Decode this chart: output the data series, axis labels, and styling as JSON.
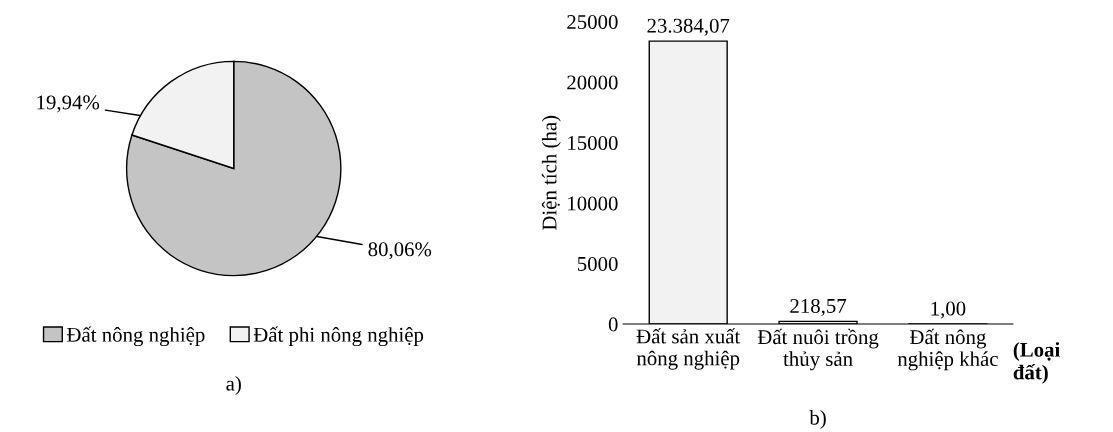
{
  "chart_data": [
    {
      "type": "pie",
      "title": "a)",
      "categories": [
        "Đất nông nghiệp",
        "Đất phi nông nghiệp"
      ],
      "values": [
        80.06,
        19.94
      ],
      "colors": [
        "#c4c4c4",
        "#f2f2f2"
      ],
      "value_labels": [
        "80,06%",
        "19,94%"
      ],
      "legend": "bottom"
    },
    {
      "type": "bar",
      "title": "b)",
      "categories": [
        "Đất sản xuất\nnông nghiệp",
        "Đất nuôi trồng\nthủy sản",
        "Đất nông\nnghiệp khác"
      ],
      "values": [
        23384.07,
        218.57,
        1.0
      ],
      "value_labels": [
        "23.384,07",
        "218,57",
        "1,00"
      ],
      "color": "#f2f2f2",
      "ylabel": "Diện tích (ha)",
      "xlabel": "(Loại\nđất)",
      "ylim": [
        0,
        25000
      ],
      "yticks": [
        0,
        5000,
        10000,
        15000,
        20000,
        25000
      ],
      "grid": false,
      "legend": false
    }
  ]
}
